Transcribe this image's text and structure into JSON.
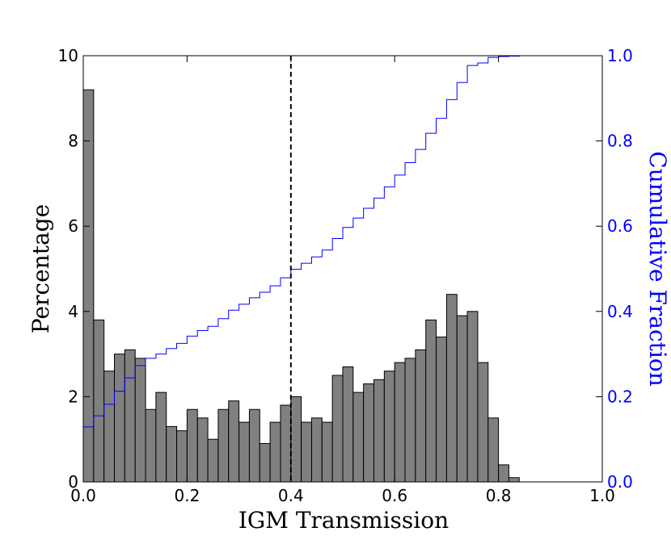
{
  "chart_data": {
    "type": "bar",
    "xlabel": "IGM Transmission",
    "ylabel": "Percentage",
    "y2label": "Cumulative Fraction",
    "xlim": [
      0.0,
      1.0
    ],
    "ylim": [
      0,
      10
    ],
    "y2lim": [
      0.0,
      1.0
    ],
    "x_ticks": [
      "0.0",
      "0.2",
      "0.4",
      "0.6",
      "0.8",
      "1.0"
    ],
    "y_ticks": [
      "0",
      "2",
      "4",
      "6",
      "8",
      "10"
    ],
    "y2_ticks": [
      "0.0",
      "0.2",
      "0.4",
      "0.6",
      "0.8",
      "1.0"
    ],
    "vline_x": 0.4,
    "bin_width": 0.02,
    "series": [
      {
        "type": "histogram",
        "color": "#808080",
        "bin_start": [
          0.0,
          0.02,
          0.04,
          0.06,
          0.08,
          0.1,
          0.12,
          0.14,
          0.16,
          0.18,
          0.2,
          0.22,
          0.24,
          0.26,
          0.28,
          0.3,
          0.32,
          0.34,
          0.36,
          0.38,
          0.4,
          0.42,
          0.44,
          0.46,
          0.48,
          0.5,
          0.52,
          0.54,
          0.56,
          0.58,
          0.6,
          0.62,
          0.64,
          0.66,
          0.68,
          0.7,
          0.72,
          0.74,
          0.76,
          0.78,
          0.8,
          0.82
        ],
        "values": [
          9.2,
          3.8,
          2.6,
          3.0,
          3.1,
          2.9,
          1.7,
          2.1,
          1.3,
          1.2,
          1.7,
          1.5,
          1.0,
          1.7,
          1.9,
          1.4,
          1.7,
          0.9,
          1.4,
          1.8,
          2.0,
          1.4,
          1.5,
          1.4,
          2.5,
          2.7,
          2.1,
          2.3,
          2.4,
          2.6,
          2.8,
          2.9,
          3.1,
          3.8,
          3.4,
          4.4,
          3.9,
          4.0,
          2.8,
          1.5,
          0.4,
          0.1
        ]
      },
      {
        "type": "step",
        "axis": "right",
        "color": "#0000ff",
        "x": [
          0.0,
          0.02,
          0.04,
          0.06,
          0.08,
          0.1,
          0.12,
          0.14,
          0.16,
          0.18,
          0.2,
          0.22,
          0.24,
          0.26,
          0.28,
          0.3,
          0.32,
          0.34,
          0.36,
          0.38,
          0.4,
          0.42,
          0.44,
          0.46,
          0.48,
          0.5,
          0.52,
          0.54,
          0.56,
          0.58,
          0.6,
          0.62,
          0.64,
          0.66,
          0.68,
          0.7,
          0.72,
          0.74,
          0.76,
          0.78,
          0.8,
          0.82,
          0.84,
          0.86,
          0.98
        ],
        "values": [
          0.129,
          0.155,
          0.182,
          0.213,
          0.244,
          0.273,
          0.29,
          0.3,
          0.313,
          0.325,
          0.342,
          0.355,
          0.365,
          0.383,
          0.403,
          0.417,
          0.432,
          0.445,
          0.46,
          0.479,
          0.499,
          0.513,
          0.528,
          0.544,
          0.571,
          0.597,
          0.619,
          0.642,
          0.666,
          0.692,
          0.72,
          0.749,
          0.78,
          0.818,
          0.853,
          0.897,
          0.937,
          0.977,
          0.983,
          0.996,
          0.998,
          0.999,
          1.0,
          1.0,
          1.0
        ]
      }
    ]
  }
}
